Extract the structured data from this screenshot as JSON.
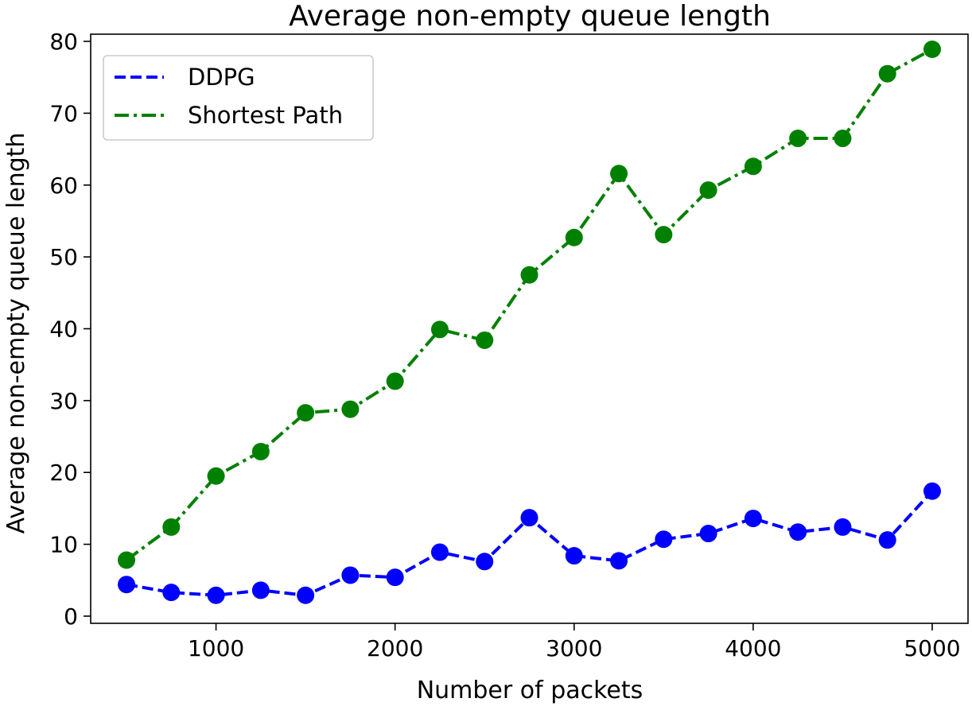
{
  "chart_data": {
    "type": "line",
    "title": "Average non-empty queue length",
    "xlabel": "Number of packets",
    "ylabel": "Average non-empty queue length",
    "xlim": [
      300,
      5200
    ],
    "ylim": [
      -1,
      81
    ],
    "xticks": [
      1000,
      2000,
      3000,
      4000,
      5000
    ],
    "yticks": [
      0,
      10,
      20,
      30,
      40,
      50,
      60,
      70,
      80
    ],
    "grid": false,
    "legend_position": "top-left",
    "x": [
      500,
      750,
      1000,
      1250,
      1500,
      1750,
      2000,
      2250,
      2500,
      2750,
      3000,
      3250,
      3500,
      3750,
      4000,
      4250,
      4500,
      4750,
      5000
    ],
    "series": [
      {
        "name": "DDPG",
        "color": "#0000ff",
        "linestyle": "dashed",
        "values": [
          4.4,
          3.3,
          2.9,
          3.6,
          2.9,
          5.7,
          5.4,
          8.9,
          7.6,
          13.7,
          8.4,
          7.7,
          10.7,
          11.5,
          13.6,
          11.7,
          12.4,
          10.6,
          17.4
        ]
      },
      {
        "name": "Shortest Path",
        "color": "#008000",
        "linestyle": "dashdot",
        "values": [
          7.8,
          12.4,
          19.5,
          22.9,
          28.3,
          28.8,
          32.7,
          39.9,
          38.4,
          47.5,
          52.7,
          61.6,
          53.1,
          59.3,
          62.6,
          66.5,
          66.5,
          75.5,
          78.9
        ]
      }
    ]
  }
}
